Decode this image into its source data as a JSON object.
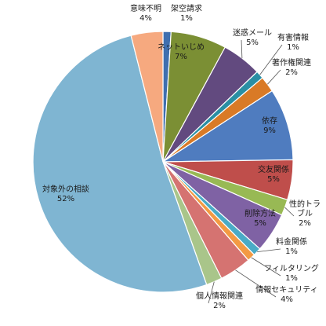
{
  "chart_data": {
    "type": "pie",
    "title": "",
    "start_angle_deg": 0,
    "direction": "clockwise",
    "slices": [
      {
        "label": "架空請求",
        "pct_label": "1%",
        "value": 1,
        "color": "#3f6faf"
      },
      {
        "label": "ネットいじめ",
        "pct_label": "7%",
        "value": 7,
        "color": "#7b8f34"
      },
      {
        "label": "迷惑メール",
        "pct_label": "5%",
        "value": 5,
        "color": "#624a7f"
      },
      {
        "label": "有害情報",
        "pct_label": "1%",
        "value": 1,
        "color": "#2a8fa4"
      },
      {
        "label": "著作権関連",
        "pct_label": "2%",
        "value": 2,
        "color": "#d97a26"
      },
      {
        "label": "依存",
        "pct_label": "9%",
        "value": 9,
        "color": "#4f7cbf"
      },
      {
        "label": "交友関係",
        "pct_label": "5%",
        "value": 5,
        "color": "#bf4e4b"
      },
      {
        "label": "性的トラブル",
        "pct_label": "2%",
        "value": 2,
        "color": "#98b954"
      },
      {
        "label": "削除方法",
        "pct_label": "5%",
        "value": 5,
        "color": "#7f62a4"
      },
      {
        "label": "料金関係",
        "pct_label": "1%",
        "value": 1,
        "color": "#4aabc6"
      },
      {
        "label": "フィルタリング",
        "pct_label": "1%",
        "value": 1,
        "color": "#f39a43"
      },
      {
        "label": "情報セキュリティ",
        "pct_label": "4%",
        "value": 4,
        "color": "#d57371"
      },
      {
        "label": "個人情報関連",
        "pct_label": "2%",
        "value": 2,
        "color": "#a9c58a"
      },
      {
        "label": "対象外の相談",
        "pct_label": "52%",
        "value": 52,
        "color": "#7fb5d2"
      },
      {
        "label": "意味不明",
        "pct_label": "4%",
        "value": 4,
        "color": "#f6a97f"
      }
    ]
  }
}
